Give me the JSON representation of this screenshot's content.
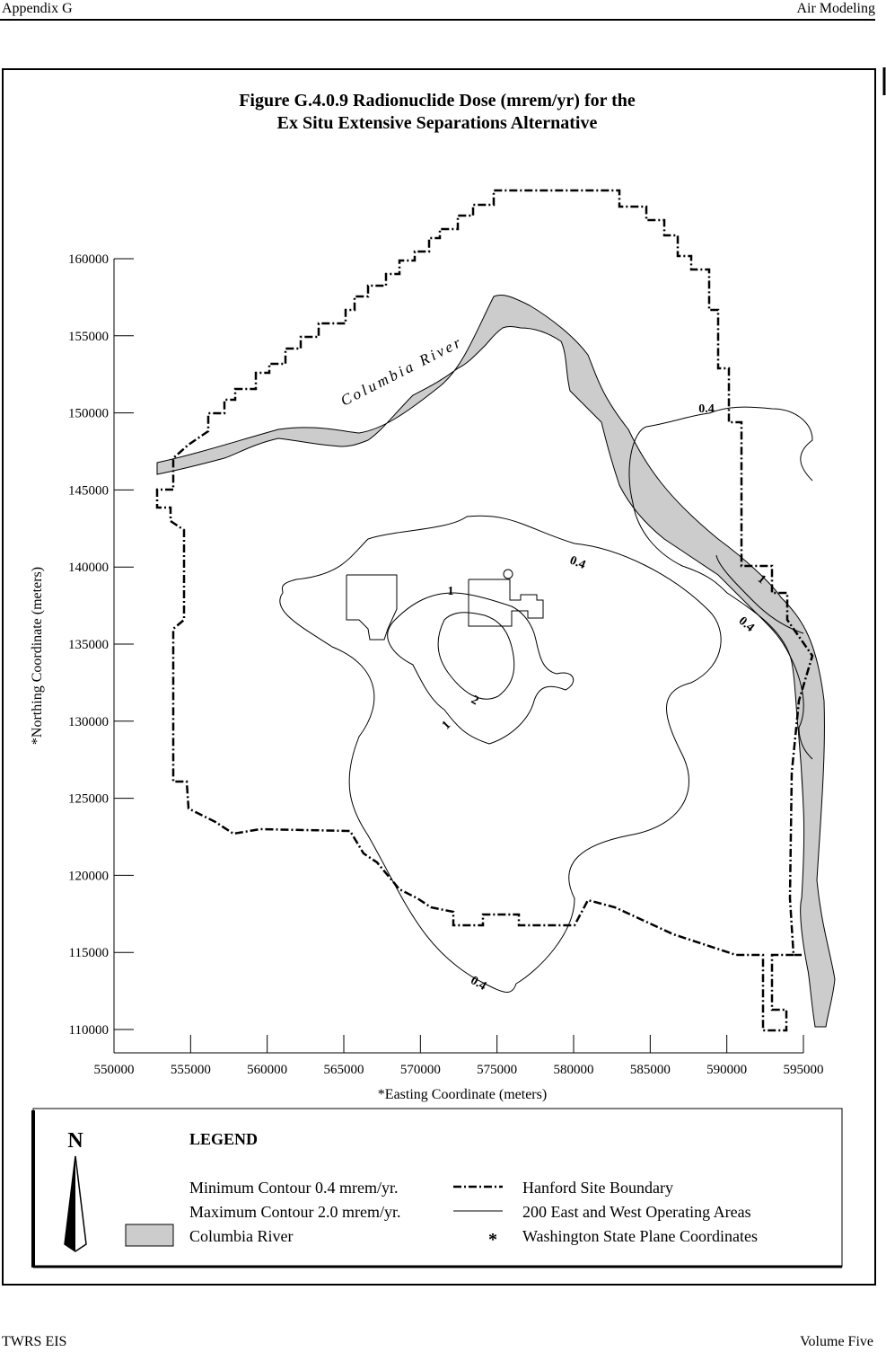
{
  "header": {
    "left": "Appendix G",
    "right": "Air Modeling"
  },
  "figure": {
    "title_lines": [
      "Figure G.4.0.9  Radionuclide Dose (mrem/yr) for the",
      "Ex Situ Extensive Separations Alternative"
    ],
    "y_label": "*Northing Coordinate (meters)",
    "x_label": "*Easting Coordinate (meters)",
    "yticks": [
      110000,
      115000,
      120000,
      125000,
      130000,
      135000,
      140000,
      145000,
      150000,
      155000,
      160000
    ],
    "xticks": [
      550000,
      555000,
      560000,
      565000,
      570000,
      575000,
      580000,
      585000,
      590000,
      595000
    ],
    "river_label": "Columbia River",
    "contour_labels": [
      "0.4",
      "0.4",
      "1",
      "1",
      "0.4",
      "2",
      "1",
      "0.4"
    ]
  },
  "legend": {
    "north": "N",
    "title": "LEGEND",
    "items": [
      "Minimum Contour 0.4 mrem/yr.",
      "Maximum Contour 2.0 mrem/yr.",
      "Columbia River",
      "Hanford Site Boundary",
      "200 East and West Operating Areas",
      "Washington State Plane Coordinates"
    ],
    "asterisk": "*"
  },
  "footer": {
    "left": "TWRS EIS",
    "right": "Volume Five"
  }
}
